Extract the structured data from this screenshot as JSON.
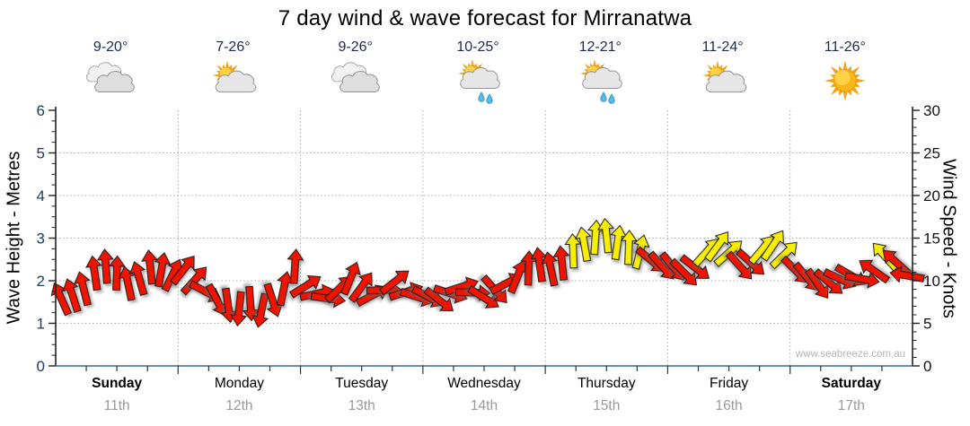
{
  "chart_data": {
    "type": "wind-arrow-timeseries",
    "title": "7 day wind & wave forecast for Mirranatwa",
    "watermark": "www.seabreeze.com.au",
    "axes": {
      "left": {
        "label": "Wave Height - Metres",
        "min": 0,
        "max": 6,
        "major_step": 1,
        "minor_step": 0.25,
        "ticks": [
          0,
          1,
          2,
          3,
          4,
          5,
          6
        ]
      },
      "right": {
        "label": "Wind Speed - Knots",
        "min": 0,
        "max": 30,
        "major_step": 5,
        "minor_step": 1,
        "ticks": [
          0,
          5,
          10,
          15,
          20,
          25,
          30
        ]
      }
    },
    "arrow_units": "each arrow = [wind speed in knots, direction in degrees]",
    "yellow_threshold_knots": 12.8,
    "colors": {
      "arrow_low": "#ee1400",
      "arrow_high": "#f8ee00",
      "bottom_spine": "#36688e",
      "grid": "#aaaaaa",
      "left_tick_text": "#223a5e",
      "right_tick_text": "#111111",
      "date_text": "#999999",
      "watermark_text": "#b5b5b5"
    },
    "days": [
      {
        "name": "Sunday",
        "date": "11th",
        "temp": "9-20°",
        "icon": "cloudy",
        "weekend": true,
        "arrows": [
          [
            7.9,
            -24
          ],
          [
            8.3,
            -18
          ],
          [
            9.1,
            -14
          ],
          [
            10.9,
            -8
          ],
          [
            11.7,
            -4
          ],
          [
            10.9,
            2
          ],
          [
            9.7,
            -12
          ],
          [
            10.3,
            -16
          ],
          [
            11.6,
            -6
          ],
          [
            11.3,
            10
          ],
          [
            10.7,
            26
          ]
        ]
      },
      {
        "name": "Monday",
        "date": "12th",
        "temp": "7-26°",
        "icon": "sun-cloud",
        "weekend": false,
        "arrows": [
          [
            11.3,
            38
          ],
          [
            10.1,
            42
          ],
          [
            8.7,
            118
          ],
          [
            7.7,
            152
          ],
          [
            7.1,
            172
          ],
          [
            6.7,
            186
          ],
          [
            7.3,
            176
          ],
          [
            6.5,
            192
          ],
          [
            7.7,
            162
          ],
          [
            9.1,
            12
          ],
          [
            11.7,
            4
          ]
        ]
      },
      {
        "name": "Tuesday",
        "date": "13th",
        "temp": "9-26°",
        "icon": "cloudy",
        "weekend": false,
        "arrows": [
          [
            9.4,
            58
          ],
          [
            8.5,
            78
          ],
          [
            7.9,
            98
          ],
          [
            9.1,
            46
          ],
          [
            10.3,
            22
          ],
          [
            9.3,
            36
          ],
          [
            8.3,
            62
          ],
          [
            8.9,
            88
          ],
          [
            9.9,
            52
          ],
          [
            8.7,
            72
          ],
          [
            8.1,
            108
          ]
        ]
      },
      {
        "name": "Wednesday",
        "date": "14th",
        "temp": "10-25°",
        "icon": "sun-cloud-rain",
        "weekend": false,
        "arrows": [
          [
            8.1,
            118
          ],
          [
            7.7,
            128
          ],
          [
            8.5,
            108
          ],
          [
            9.3,
            72
          ],
          [
            8.6,
            92
          ],
          [
            8.0,
            122
          ],
          [
            8.9,
            138
          ],
          [
            9.7,
            62
          ],
          [
            10.5,
            22
          ],
          [
            11.5,
            2
          ],
          [
            11.9,
            -8
          ]
        ]
      },
      {
        "name": "Thursday",
        "date": "15th",
        "temp": "12-21°",
        "icon": "sun-cloud-rain",
        "weekend": false,
        "arrows": [
          [
            11.4,
            -12
          ],
          [
            12.1,
            -6
          ],
          [
            13.5,
            -2
          ],
          [
            14.3,
            -10
          ],
          [
            15.1,
            4
          ],
          [
            15.3,
            -6
          ],
          [
            14.5,
            8
          ],
          [
            13.9,
            2
          ],
          [
            13.4,
            14
          ],
          [
            12.4,
            130
          ],
          [
            11.7,
            138
          ]
        ]
      },
      {
        "name": "Friday",
        "date": "16th",
        "temp": "11-24°",
        "icon": "sun-cloud",
        "weekend": false,
        "arrows": [
          [
            11.6,
            140
          ],
          [
            10.9,
            135
          ],
          [
            11.5,
            128
          ],
          [
            13.4,
            42
          ],
          [
            14.1,
            36
          ],
          [
            13.3,
            48
          ],
          [
            11.7,
            138
          ],
          [
            12.1,
            132
          ],
          [
            13.7,
            40
          ],
          [
            14.2,
            34
          ],
          [
            13.1,
            46
          ]
        ]
      },
      {
        "name": "Saturday",
        "date": "17th",
        "temp": "11-26°",
        "icon": "sunny",
        "weekend": true,
        "arrows": [
          [
            11.2,
            135
          ],
          [
            10.4,
            140
          ],
          [
            9.6,
            145
          ],
          [
            9.8,
            130
          ],
          [
            10.2,
            115
          ],
          [
            10.6,
            120
          ],
          [
            10.2,
            100
          ],
          [
            11.2,
            -55
          ],
          [
            12.9,
            -42
          ],
          [
            12.2,
            -48
          ],
          [
            10.6,
            -80
          ]
        ]
      }
    ]
  }
}
